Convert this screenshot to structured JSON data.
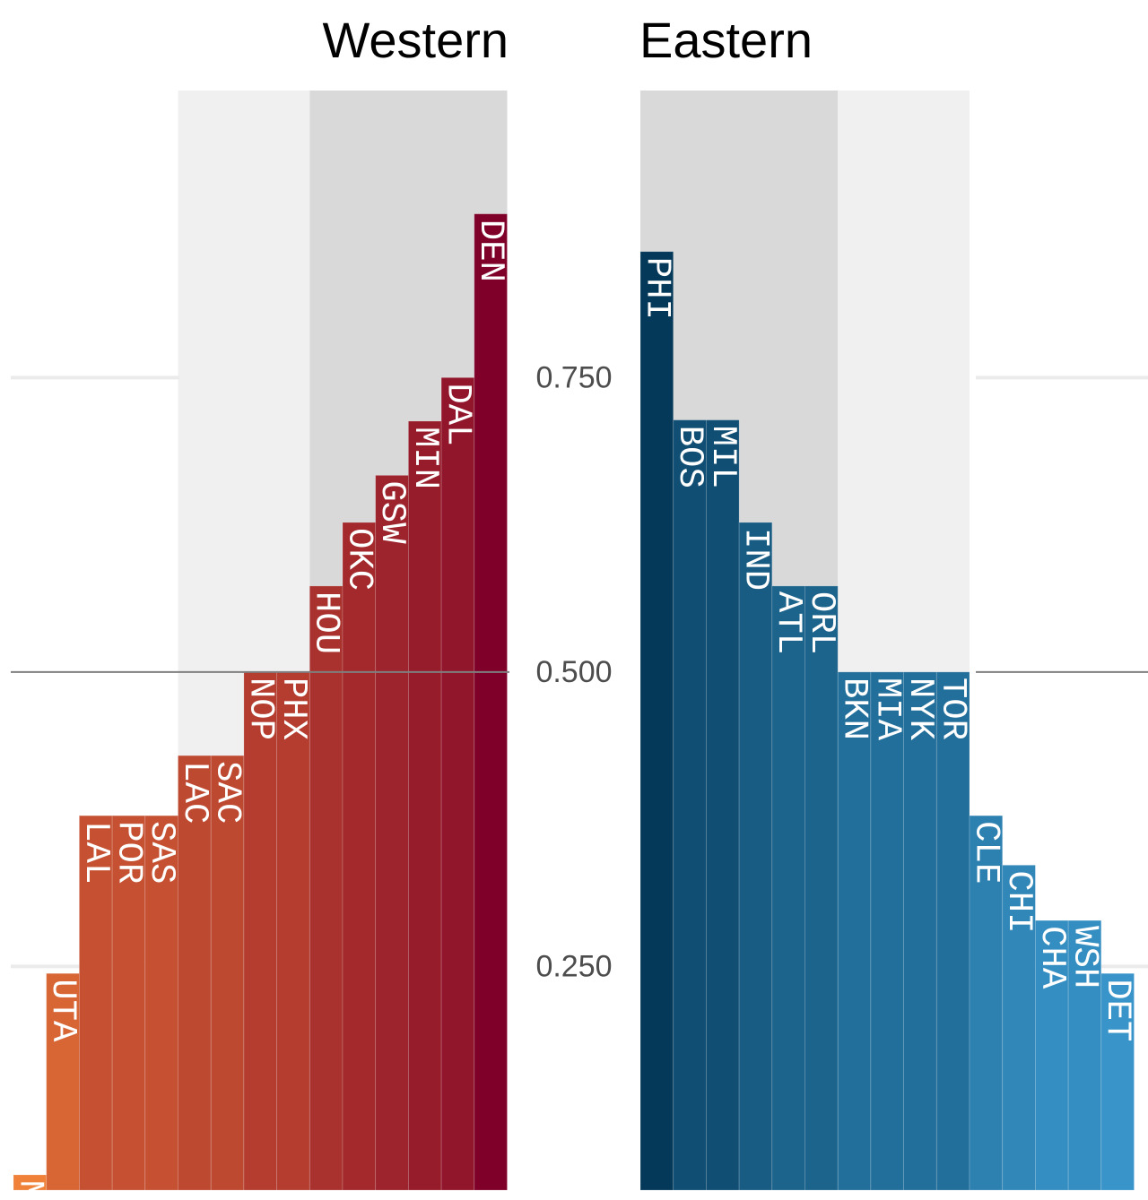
{
  "chart_data": {
    "type": "bar",
    "ylim": [
      0.06,
      1.0
    ],
    "y_ticks": [
      {
        "value": 0.25,
        "label": "0.250"
      },
      {
        "value": 0.5,
        "label": "0.500"
      },
      {
        "value": 0.75,
        "label": "0.750"
      }
    ],
    "reference_line": 0.5,
    "panels": [
      {
        "title": "Western",
        "direction": "ascending",
        "colors": {
          "low": "#ef8138",
          "high": "#7f0028"
        },
        "shaded_bands": [
          {
            "from": "LAC",
            "to": "PHX",
            "color": "#f0f0f0"
          },
          {
            "from": "HOU",
            "to": "DEN",
            "color": "#d9d9d9"
          }
        ],
        "bars": [
          {
            "value": 0.073,
            "labels": [
              "MEM"
            ]
          },
          {
            "value": 0.244,
            "labels": [
              "UTA"
            ]
          },
          {
            "value": 0.378,
            "labels": [
              "LAL",
              "POR",
              "SAS"
            ]
          },
          {
            "value": 0.378,
            "labels": []
          },
          {
            "value": 0.378,
            "labels": []
          },
          {
            "value": 0.429,
            "labels": [
              "LAC",
              "SAC"
            ]
          },
          {
            "value": 0.429,
            "labels": []
          },
          {
            "value": 0.5,
            "labels": [
              "NOP",
              "PHX"
            ]
          },
          {
            "value": 0.5,
            "labels": []
          },
          {
            "value": 0.573,
            "labels": [
              "HOU"
            ]
          },
          {
            "value": 0.627,
            "labels": [
              "OKC"
            ]
          },
          {
            "value": 0.667,
            "labels": [
              "GSW"
            ]
          },
          {
            "value": 0.713,
            "labels": [
              "MIN"
            ]
          },
          {
            "value": 0.75,
            "labels": [
              "DAL"
            ]
          },
          {
            "value": 0.889,
            "labels": [
              "DEN"
            ]
          }
        ]
      },
      {
        "title": "Eastern",
        "direction": "descending",
        "colors": {
          "low": "#3995c9",
          "high": "#04395a"
        },
        "shaded_bands": [
          {
            "from": "PHI",
            "to": "ORL",
            "color": "#d9d9d9"
          },
          {
            "from": "BKN",
            "to": "TOR",
            "color": "#f0f0f0"
          }
        ],
        "bars": [
          {
            "value": 0.857,
            "labels": [
              "PHI"
            ]
          },
          {
            "value": 0.714,
            "labels": [
              "BOS",
              "MIL"
            ]
          },
          {
            "value": 0.714,
            "labels": []
          },
          {
            "value": 0.627,
            "labels": [
              "IND"
            ]
          },
          {
            "value": 0.573,
            "labels": [
              "ATL",
              "ORL"
            ]
          },
          {
            "value": 0.573,
            "labels": []
          },
          {
            "value": 0.5,
            "labels": [
              "BKN",
              "MIA",
              "NYK",
              "TOR"
            ]
          },
          {
            "value": 0.5,
            "labels": []
          },
          {
            "value": 0.5,
            "labels": []
          },
          {
            "value": 0.5,
            "labels": []
          },
          {
            "value": 0.378,
            "labels": [
              "CLE"
            ]
          },
          {
            "value": 0.336,
            "labels": [
              "CHI"
            ]
          },
          {
            "value": 0.289,
            "labels": [
              "CHA",
              "WSH"
            ]
          },
          {
            "value": 0.289,
            "labels": []
          },
          {
            "value": 0.244,
            "labels": [
              "DET"
            ]
          }
        ]
      }
    ]
  }
}
